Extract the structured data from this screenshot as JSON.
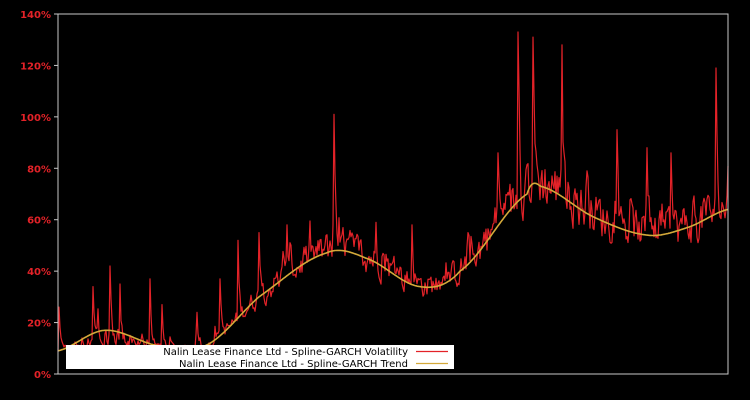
{
  "chart_data": {
    "type": "line",
    "title": "",
    "xlabel": "",
    "ylabel": "",
    "ylim": [
      0,
      140
    ],
    "y_ticks": [
      0,
      20,
      40,
      60,
      80,
      100,
      120,
      140
    ],
    "y_tick_labels": [
      "0%",
      "20%",
      "40%",
      "60%",
      "80%",
      "100%",
      "120%",
      "140%"
    ],
    "grid": false,
    "legend_position": "lower-left",
    "background": "#000000",
    "axis_color": "#c8c8c8",
    "tick_label_color": "#e32228",
    "x_points": 670,
    "x_axis_note": "No x-axis tick labels are visible; horizontal position is an index across the plot width.",
    "series": [
      {
        "name": "Nalin Lease Finance Ltd - Spline-GARCH Volatility",
        "color": "#e32228",
        "style": "noisy",
        "value_provenance": "The shape is read from the image; the plotted series is generated. Base level tracks the trend. Per-point noise is synthetic, produced by a fixed-seed generator. Only the 'spikes' entries are actual readings, estimated from pixel positions, not digitized data.",
        "noise_seed": 12345,
        "spikes_read_from_image": [
          {
            "x_frac": 0.002,
            "value": 26
          },
          {
            "x_frac": 0.052,
            "value": 34
          },
          {
            "x_frac": 0.078,
            "value": 42
          },
          {
            "x_frac": 0.093,
            "value": 35
          },
          {
            "x_frac": 0.138,
            "value": 37
          },
          {
            "x_frac": 0.155,
            "value": 27
          },
          {
            "x_frac": 0.208,
            "value": 24
          },
          {
            "x_frac": 0.242,
            "value": 37
          },
          {
            "x_frac": 0.268,
            "value": 52
          },
          {
            "x_frac": 0.3,
            "value": 55
          },
          {
            "x_frac": 0.342,
            "value": 58
          },
          {
            "x_frac": 0.412,
            "value": 101
          },
          {
            "x_frac": 0.475,
            "value": 59
          },
          {
            "x_frac": 0.528,
            "value": 58
          },
          {
            "x_frac": 0.612,
            "value": 55
          },
          {
            "x_frac": 0.656,
            "value": 86
          },
          {
            "x_frac": 0.686,
            "value": 133
          },
          {
            "x_frac": 0.709,
            "value": 131
          },
          {
            "x_frac": 0.752,
            "value": 128
          },
          {
            "x_frac": 0.789,
            "value": 79
          },
          {
            "x_frac": 0.835,
            "value": 95
          },
          {
            "x_frac": 0.879,
            "value": 88
          },
          {
            "x_frac": 0.915,
            "value": 86
          },
          {
            "x_frac": 0.982,
            "value": 119
          }
        ]
      },
      {
        "name": "Nalin Lease Finance Ltd - Spline-GARCH Trend",
        "color": "#d4a93a",
        "style": "smooth",
        "value_provenance": "Control points read from the image, estimated from pixel positions.",
        "control_points": [
          {
            "x_frac": 0.0,
            "value": 9
          },
          {
            "x_frac": 0.07,
            "value": 17
          },
          {
            "x_frac": 0.15,
            "value": 11
          },
          {
            "x_frac": 0.22,
            "value": 11
          },
          {
            "x_frac": 0.3,
            "value": 30
          },
          {
            "x_frac": 0.4,
            "value": 47
          },
          {
            "x_frac": 0.46,
            "value": 45
          },
          {
            "x_frac": 0.54,
            "value": 34
          },
          {
            "x_frac": 0.6,
            "value": 40
          },
          {
            "x_frac": 0.7,
            "value": 70
          },
          {
            "x_frac": 0.72,
            "value": 73
          },
          {
            "x_frac": 0.8,
            "value": 61
          },
          {
            "x_frac": 0.88,
            "value": 54
          },
          {
            "x_frac": 0.94,
            "value": 57
          },
          {
            "x_frac": 1.0,
            "value": 64
          }
        ]
      }
    ]
  },
  "legend": {
    "items": [
      {
        "label": "Nalin Lease Finance Ltd - Spline-GARCH Volatility",
        "color": "#e32228"
      },
      {
        "label": "Nalin Lease Finance Ltd - Spline-GARCH Trend",
        "color": "#d4a93a"
      }
    ]
  }
}
